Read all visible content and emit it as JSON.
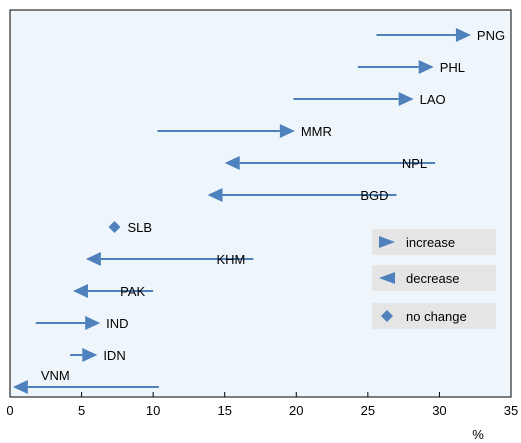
{
  "chart_data": {
    "type": "arrow",
    "x_unit_label": "%",
    "xlim": [
      0,
      35
    ],
    "x_ticks": [
      0,
      5,
      10,
      15,
      20,
      25,
      30,
      35
    ],
    "grid": false,
    "legend_placement": "right-middle",
    "colors": {
      "series": "#4f81bd",
      "plot_bg": "#eff6fb",
      "legend_bg": "#e5e5e5"
    },
    "rows": [
      {
        "label": "PNG",
        "from": 25.6,
        "to": 32.2,
        "direction": "increase"
      },
      {
        "label": "PHL",
        "from": 24.3,
        "to": 29.6,
        "direction": "increase"
      },
      {
        "label": "LAO",
        "from": 19.8,
        "to": 28.2,
        "direction": "increase"
      },
      {
        "label": "MMR",
        "from": 10.3,
        "to": 19.9,
        "direction": "increase"
      },
      {
        "label": "NPL",
        "from": 29.7,
        "to": 15.0,
        "direction": "decrease"
      },
      {
        "label": "BGD",
        "from": 27.0,
        "to": 13.8,
        "direction": "decrease"
      },
      {
        "label": "SLB",
        "from": 7.3,
        "to": 7.3,
        "direction": "no change"
      },
      {
        "label": "KHM",
        "from": 17.0,
        "to": 5.3,
        "direction": "decrease"
      },
      {
        "label": "PAK",
        "from": 10.0,
        "to": 4.4,
        "direction": "decrease"
      },
      {
        "label": "IND",
        "from": 1.8,
        "to": 6.3,
        "direction": "increase"
      },
      {
        "label": "IDN",
        "from": 4.2,
        "to": 6.1,
        "direction": "increase"
      },
      {
        "label": "VNM",
        "from": 10.4,
        "to": 0.2,
        "direction": "decrease"
      }
    ],
    "legend": [
      {
        "label": "increase",
        "marker": "arrow-right"
      },
      {
        "label": "decrease",
        "marker": "arrow-left"
      },
      {
        "label": "no change",
        "marker": "diamond"
      }
    ]
  }
}
